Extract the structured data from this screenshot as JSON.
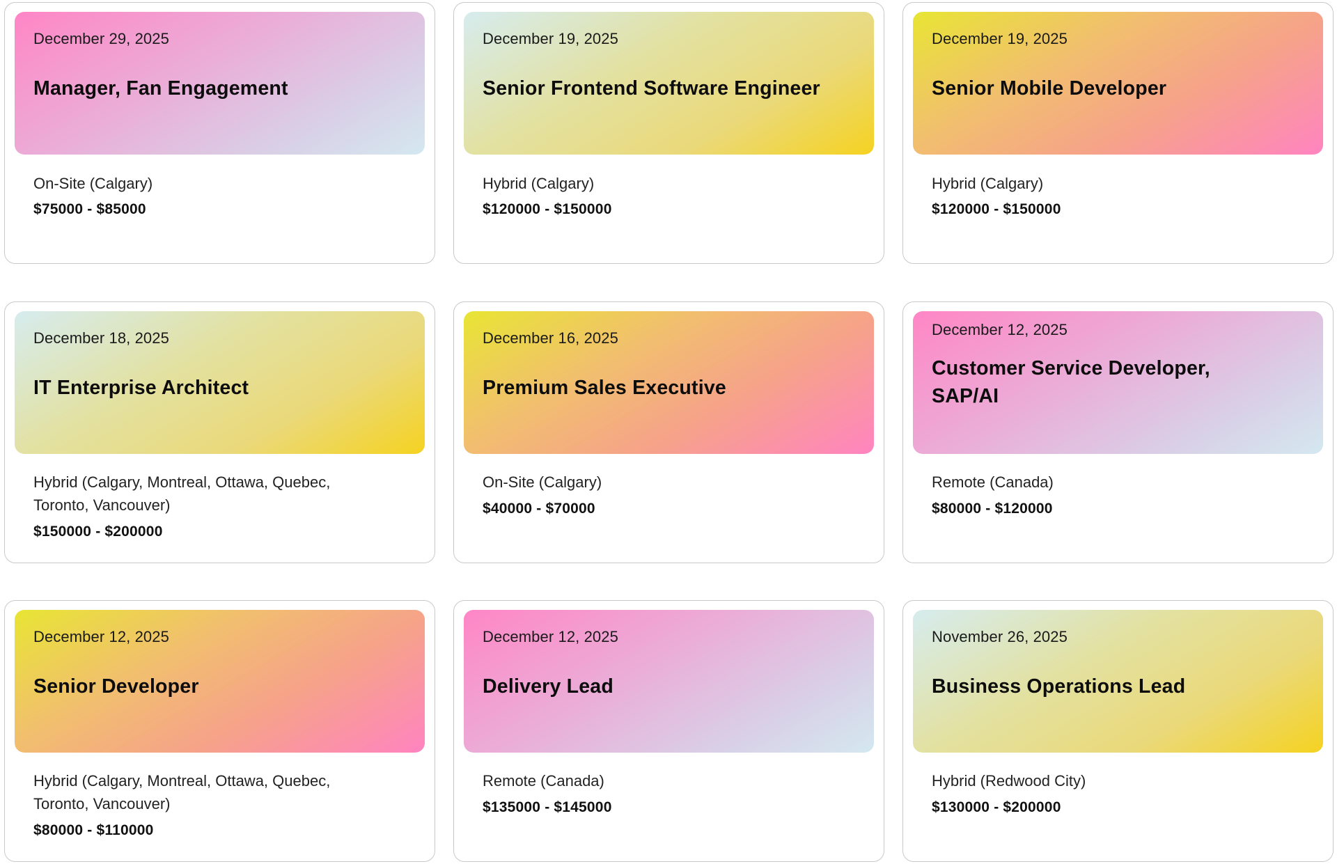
{
  "jobs": [
    {
      "date": "December 29, 2025",
      "title": "Manager, Fan Engagement",
      "location": "On-Site (Calgary)",
      "salary": "$75000 - $85000",
      "gradient": "pink"
    },
    {
      "date": "December 19, 2025",
      "title": "Senior Frontend Software Engineer",
      "location": "Hybrid (Calgary)",
      "salary": "$120000 - $150000",
      "gradient": "yellow"
    },
    {
      "date": "December 19, 2025",
      "title": "Senior Mobile Developer",
      "location": "Hybrid (Calgary)",
      "salary": "$120000 - $150000",
      "gradient": "orange"
    },
    {
      "date": "December 18, 2025",
      "title": "IT Enterprise Architect",
      "location": "Hybrid (Calgary, Montreal, Ottawa, Quebec, Toronto, Vancouver)",
      "salary": "$150000 - $200000",
      "gradient": "yellow"
    },
    {
      "date": "December 16, 2025",
      "title": "Premium Sales Executive",
      "location": "On-Site (Calgary)",
      "salary": "$40000 - $70000",
      "gradient": "orange"
    },
    {
      "date": "December 12, 2025",
      "title": "Customer Service Developer, SAP/AI",
      "location": "Remote (Canada)",
      "salary": "$80000 - $120000",
      "gradient": "pink"
    },
    {
      "date": "December 12, 2025",
      "title": "Senior Developer",
      "location": "Hybrid (Calgary, Montreal, Ottawa, Quebec, Toronto, Vancouver)",
      "salary": "$80000 - $110000",
      "gradient": "orange"
    },
    {
      "date": "December 12, 2025",
      "title": "Delivery Lead",
      "location": "Remote (Canada)",
      "salary": "$135000 - $145000",
      "gradient": "pink"
    },
    {
      "date": "November 26, 2025",
      "title": "Business Operations Lead",
      "location": "Hybrid (Redwood City)",
      "salary": "$130000 - $200000",
      "gradient": "yellow"
    }
  ],
  "colors": {
    "pink_start": "#ff86c6",
    "pink_end": "#d4e8f0",
    "yellow_start": "#d6ecee",
    "yellow_end": "#f5d221",
    "orange_start": "#e8e534",
    "orange_end": "#ff84c0",
    "card_border": "#c9c9c9"
  }
}
